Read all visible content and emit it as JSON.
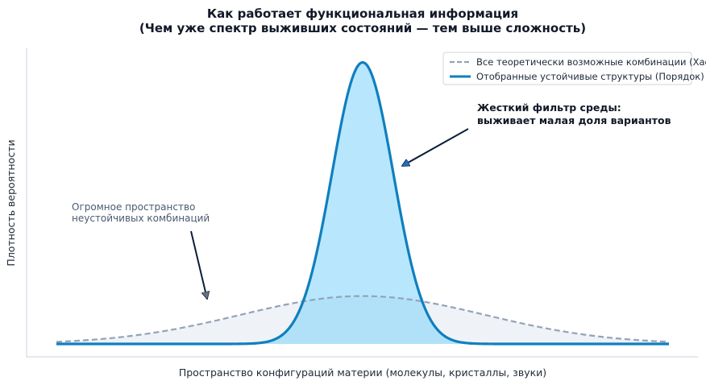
{
  "chart_data": {
    "type": "area",
    "title": [
      "Как работает функциональная информация",
      "(Чем уже спектр выживших состояний — тем выше сложность)"
    ],
    "xlabel": "Пространство конфигураций материи (молекулы, кристаллы, звуки)",
    "ylabel": "Плотность вероятности",
    "xlim": [
      -10,
      10
    ],
    "ylim": [
      0,
      1.05
    ],
    "grid": false,
    "legend_position": "top-right",
    "series": [
      {
        "name": "Все теоретически возможные комбинации (Хаос)",
        "distribution": "normal",
        "mean": 0,
        "sd": 4,
        "amplitude": 0.17,
        "line_style": "dashed",
        "color": "#94a3b8",
        "fill": "#e2e8f0"
      },
      {
        "name": "Отобранные устойчивые структуры (Порядок)",
        "distribution": "normal",
        "mean": 0,
        "sd": 1,
        "amplitude": 1.0,
        "line_style": "solid",
        "color": "#0f7fbf",
        "fill": "#7dd3fc"
      }
    ],
    "annotations": [
      {
        "lines": [
          "Жесткий фильтр среды:",
          "выживает малая доля вариантов"
        ],
        "emphasis": "bold"
      },
      {
        "lines": [
          "Огромное пространство",
          "неустойчивых комбинаций"
        ],
        "emphasis": "normal"
      }
    ]
  }
}
